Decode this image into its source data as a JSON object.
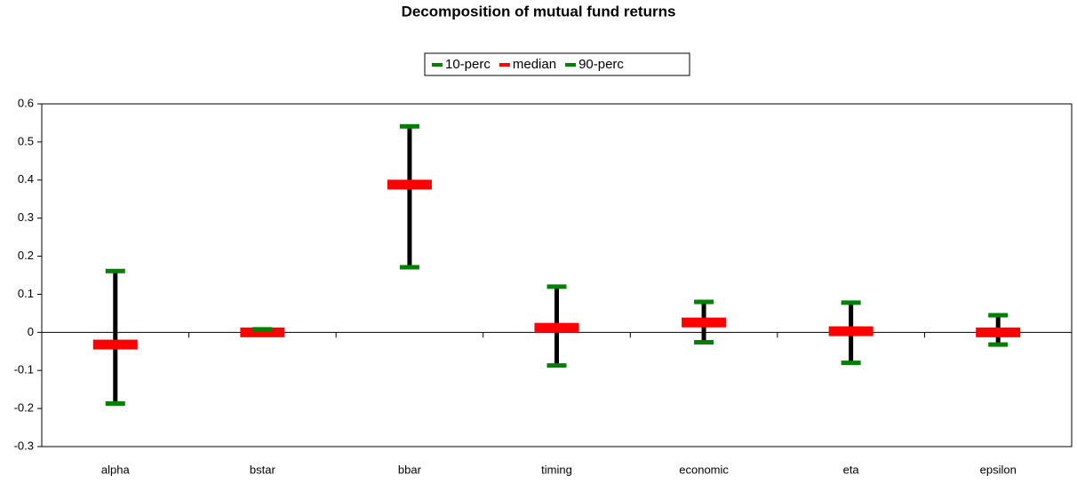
{
  "chart_data": {
    "type": "range",
    "title": "Decomposition of mutual fund returns",
    "categories": [
      "alpha",
      "bstar",
      "bbar",
      "timing",
      "economic",
      "eta",
      "epsilon"
    ],
    "series": [
      {
        "name": "10-perc",
        "color": "#008000",
        "values": [
          -0.187,
          0,
          0.171,
          -0.087,
          -0.026,
          -0.08,
          -0.032
        ]
      },
      {
        "name": "median",
        "color": "#ff0000",
        "values": [
          -0.032,
          0,
          0.388,
          0.012,
          0.026,
          0.003,
          0
        ]
      },
      {
        "name": "90-perc",
        "color": "#008000",
        "values": [
          0.161,
          0.008,
          0.541,
          0.12,
          0.08,
          0.078,
          0.045
        ]
      }
    ],
    "ylim": [
      -0.3,
      0.6
    ],
    "yticks": [
      -0.3,
      -0.2,
      -0.1,
      0,
      0.1,
      0.2,
      0.3,
      0.4,
      0.5,
      0.6
    ]
  }
}
